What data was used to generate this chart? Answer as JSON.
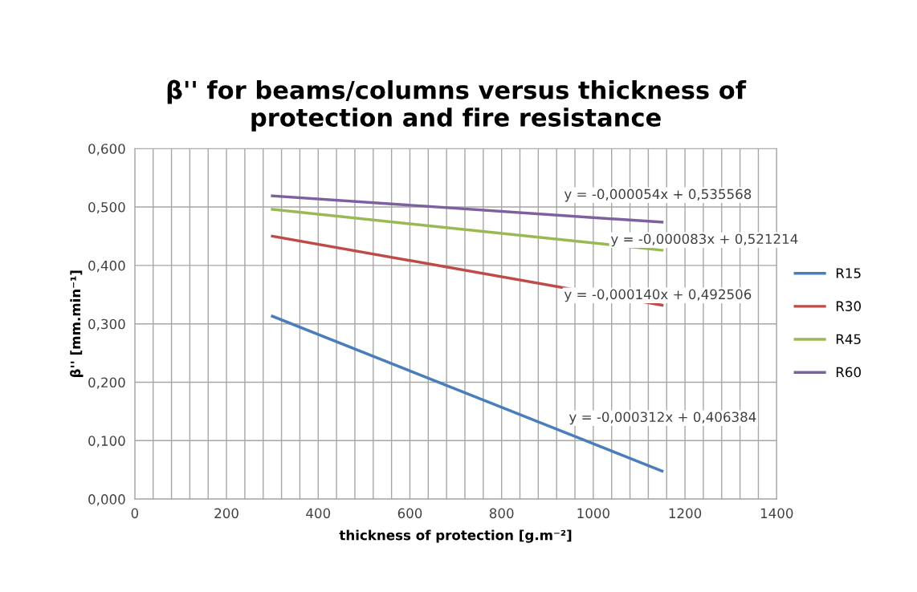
{
  "chart_data": {
    "type": "line",
    "title": "β'' for beams/columns versus thickness of\nprotection and fire resistance",
    "xlabel": "thickness of protection [g.m⁻²]",
    "ylabel": "β'' [mm.min⁻¹]",
    "x": [
      300,
      1150
    ],
    "series": [
      {
        "name": "R15",
        "color": "#4a7ebb",
        "values": [
          0.313,
          0.048
        ]
      },
      {
        "name": "R30",
        "color": "#be4b48",
        "values": [
          0.45,
          0.332
        ]
      },
      {
        "name": "R45",
        "color": "#98b954",
        "values": [
          0.496,
          0.426
        ]
      },
      {
        "name": "R60",
        "color": "#7d60a0",
        "values": [
          0.519,
          0.474
        ]
      }
    ],
    "annotations": [
      "y = -0,000054x + 0,535568",
      "y = -0,000083x + 0,521214",
      "y = -0,000140x + 0,492506",
      "y = -0,000312x + 0,406384"
    ],
    "xlim": [
      0,
      1400
    ],
    "ylim": [
      0,
      0.6
    ],
    "xticks": [
      0,
      {
        "value": 40,
        "label": null
      },
      {
        "value": 80,
        "label": null
      },
      {
        "value": 120,
        "label": null
      },
      {
        "value": 160,
        "label": null
      },
      200,
      {
        "value": 240,
        "label": null
      },
      {
        "value": 280,
        "label": null
      },
      {
        "value": 320,
        "label": null
      },
      {
        "value": 360,
        "label": null
      },
      400,
      {
        "value": 440,
        "label": null
      },
      {
        "value": 480,
        "label": null
      },
      {
        "value": 520,
        "label": null
      },
      {
        "value": 560,
        "label": null
      },
      600,
      {
        "value": 640,
        "label": null
      },
      {
        "value": 680,
        "label": null
      },
      {
        "value": 720,
        "label": null
      },
      {
        "value": 760,
        "label": null
      },
      800,
      {
        "value": 840,
        "label": null
      },
      {
        "value": 880,
        "label": null
      },
      {
        "value": 920,
        "label": null
      },
      {
        "value": 960,
        "label": null
      },
      1000,
      {
        "value": 1040,
        "label": null
      },
      {
        "value": 1080,
        "label": null
      },
      {
        "value": 1120,
        "label": null
      },
      {
        "value": 1160,
        "label": null
      },
      1200,
      {
        "value": 1240,
        "label": null
      },
      {
        "value": 1280,
        "label": null
      },
      {
        "value": 1320,
        "label": null
      },
      {
        "value": 1360,
        "label": null
      },
      1400
    ],
    "yticks": [
      {
        "value": 0,
        "label": "0,000"
      },
      {
        "value": 0.1,
        "label": "0,100"
      },
      {
        "value": 0.2,
        "label": "0,200"
      },
      {
        "value": 0.3,
        "label": "0,300"
      },
      {
        "value": 0.4,
        "label": "0,400"
      },
      {
        "value": 0.5,
        "label": "0,500"
      },
      {
        "value": 0.6,
        "label": "0,600"
      }
    ],
    "grid": true,
    "legend": "right",
    "marker": "none",
    "line_style": "solid"
  }
}
